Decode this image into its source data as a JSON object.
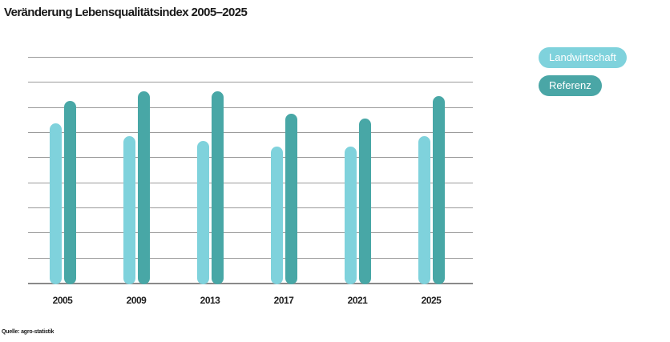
{
  "page": {
    "background_color": "#ffffff"
  },
  "header": {
    "title": "Veränderung Lebensqualitätsindex 2005–2025"
  },
  "legend": {
    "position": "right",
    "items": [
      {
        "label": "Landwirtschaft",
        "color": "#7fd2dc",
        "text_color": "#ffffff"
      },
      {
        "label": "Referenz",
        "color": "#4aa6a6",
        "text_color": "#ffffff"
      }
    ]
  },
  "source": {
    "text": "Quelle: agro-statistik"
  },
  "chart_data": {
    "type": "bar",
    "title": "Veränderung Lebensqualitätsindex 2005–2025",
    "categories": [
      "2005",
      "2009",
      "2013",
      "2017",
      "2021",
      "2025"
    ],
    "series": [
      {
        "name": "Landwirtschaft",
        "color": "#7fd2dc",
        "values": [
          6.4,
          5.9,
          5.7,
          5.5,
          5.5,
          5.9
        ]
      },
      {
        "name": "Referenz",
        "color": "#48a7a6",
        "values": [
          7.3,
          7.7,
          7.7,
          6.8,
          6.6,
          7.5
        ]
      }
    ],
    "xlabel": "",
    "ylabel": "",
    "ylim": [
      0,
      9
    ],
    "gridline_step": 1,
    "grid": true,
    "y_tick_labels_visible": false,
    "gridline_color": "#9b9b9b",
    "axis_line_color": "#8a8a8a",
    "bar_shape": "rounded-pill",
    "legend_position": "right"
  }
}
